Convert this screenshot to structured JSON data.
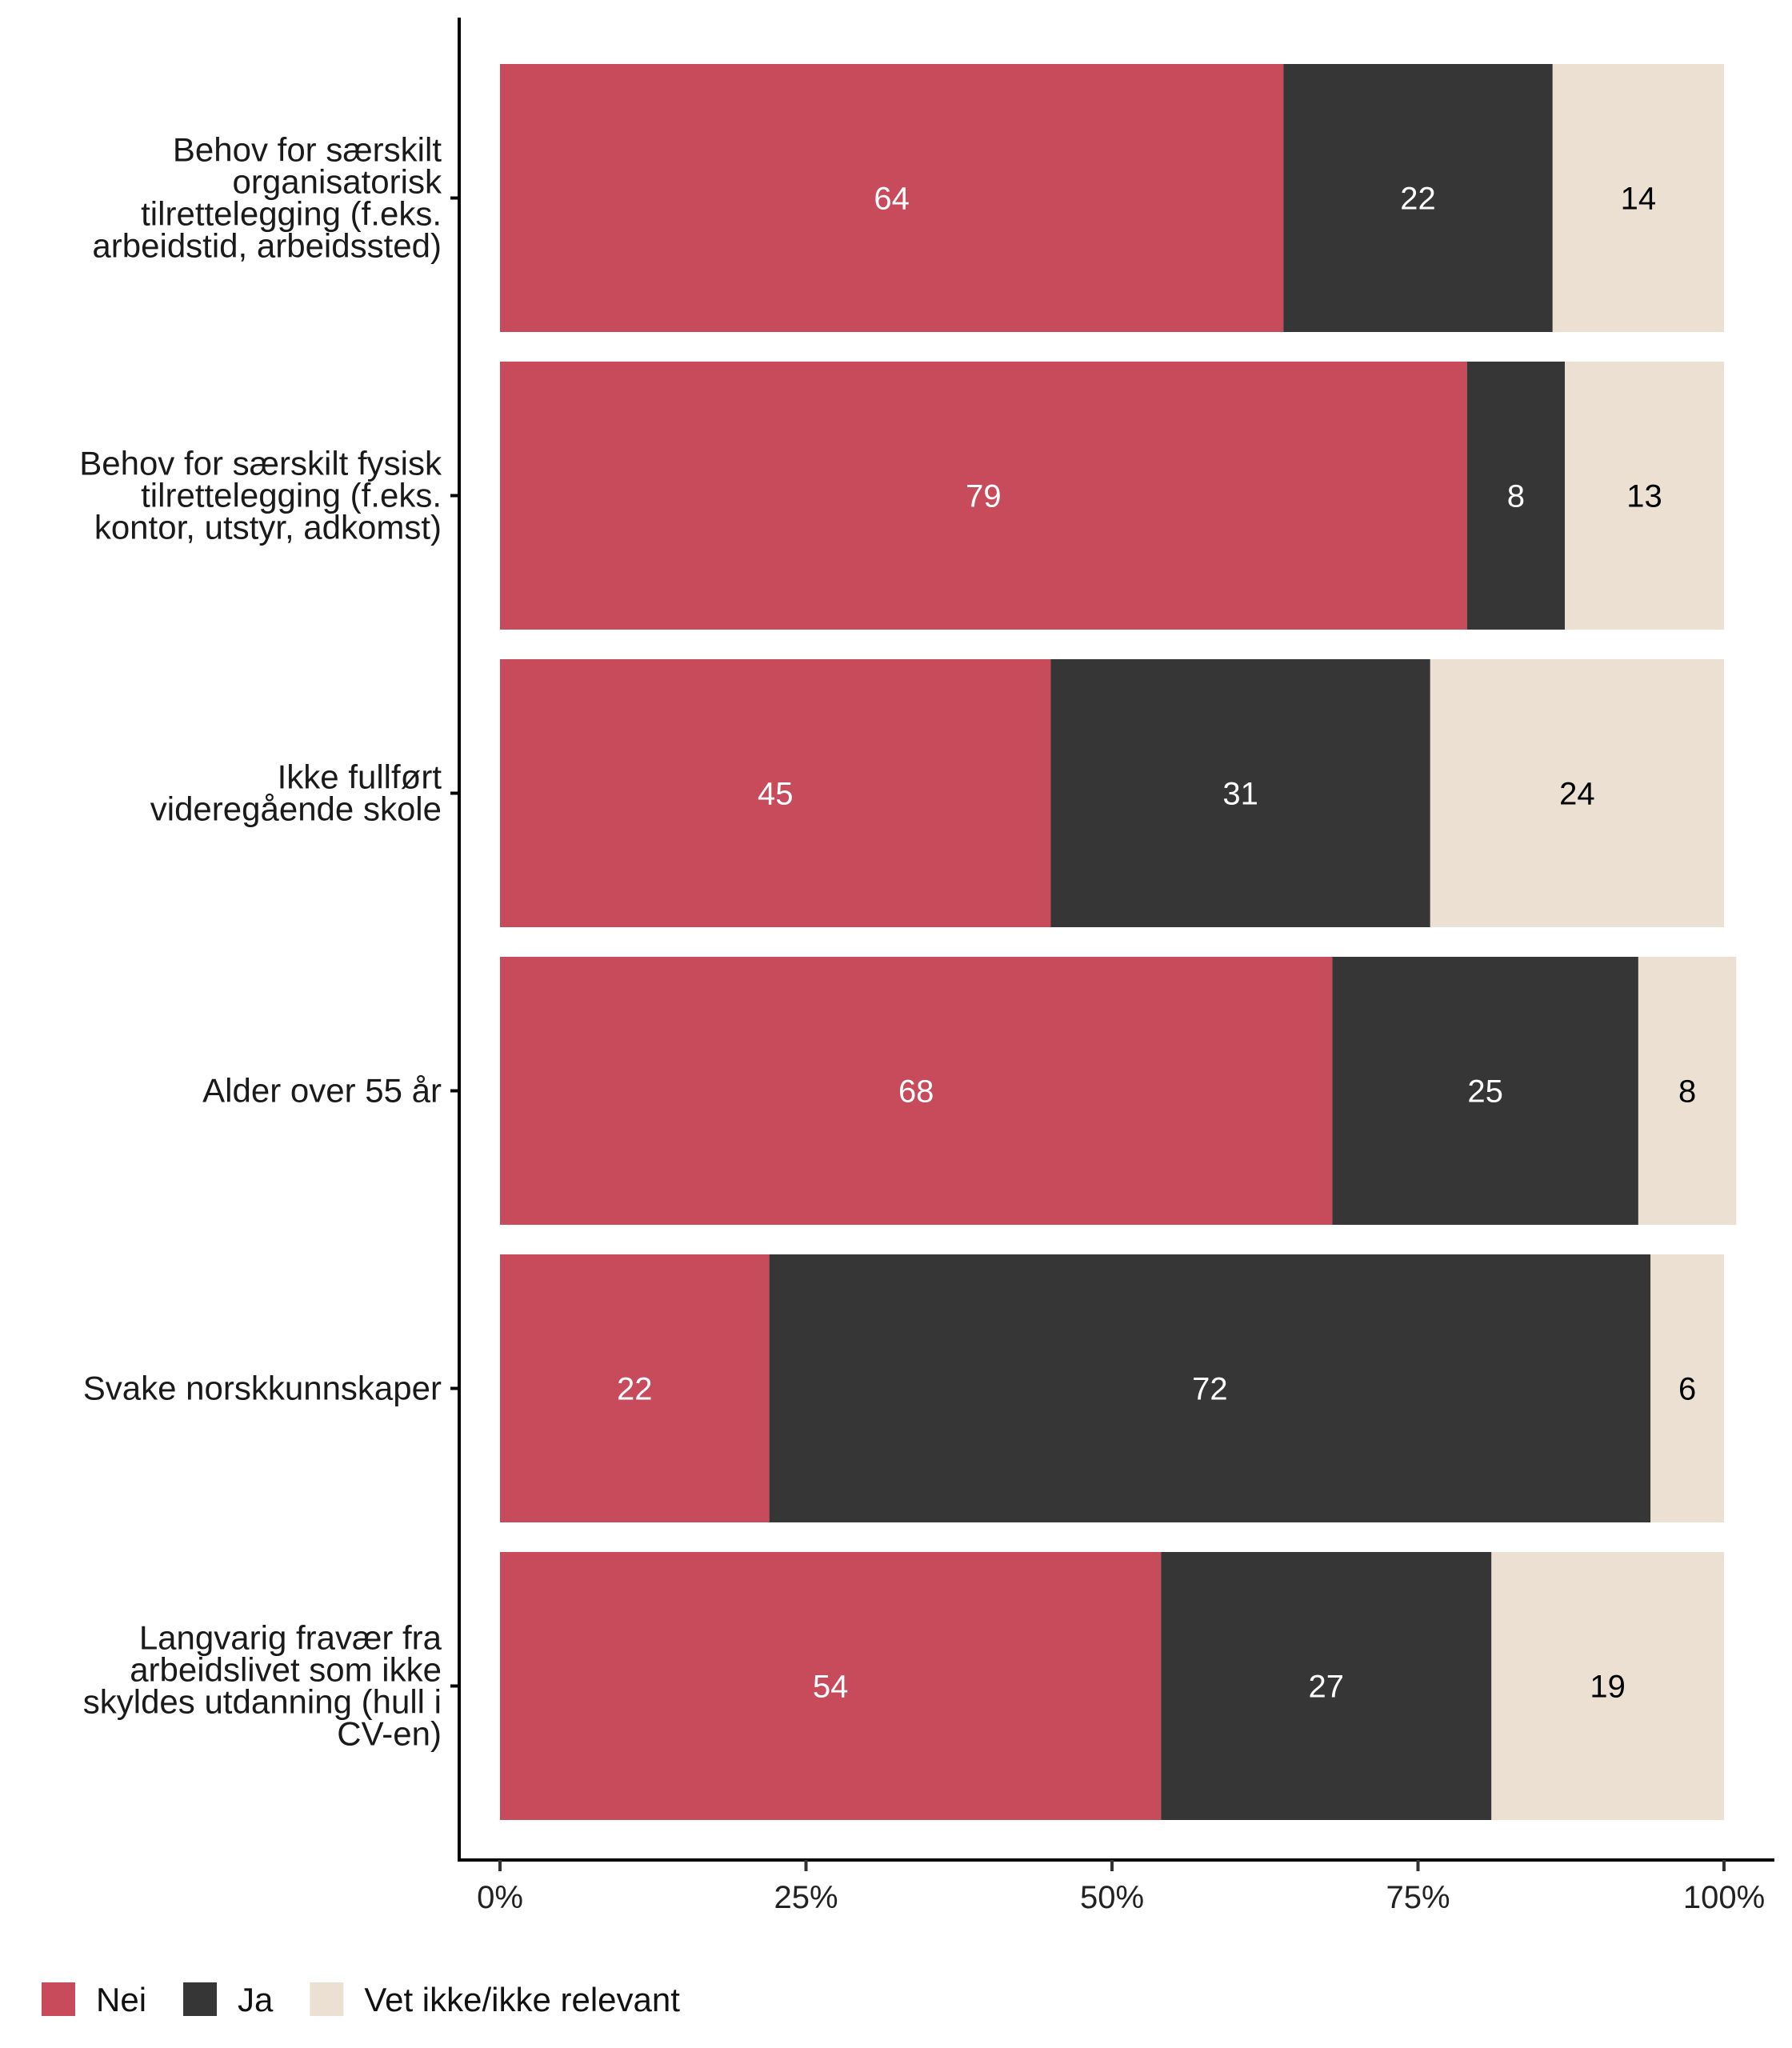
{
  "chart_data": {
    "type": "bar",
    "orientation": "horizontal",
    "stacked": true,
    "title": "",
    "xlabel": "",
    "ylabel": "",
    "xlim": [
      0,
      100
    ],
    "xticks": [
      "0%",
      "25%",
      "50%",
      "75%",
      "100%"
    ],
    "grid": false,
    "legend_position": "bottom-left",
    "categories": [
      [
        "Behov for særskilt",
        "organisatorisk",
        "tilrettelegging (f.eks.",
        "arbeidstid, arbeidssted)"
      ],
      [
        "Behov for særskilt fysisk",
        "tilrettelegging (f.eks.",
        "kontor, utstyr, adkomst)"
      ],
      [
        "Ikke fullført",
        "videregående skole"
      ],
      [
        "Alder over 55 år"
      ],
      [
        "Svake norskkunnskaper"
      ],
      [
        "Langvarig fravær fra",
        "arbeidslivet som ikke",
        "skyldes utdanning (hull i",
        "CV-en)"
      ]
    ],
    "series": [
      {
        "name": "Nei",
        "color": "#C84B5B",
        "label_color": "#ffffff",
        "values": [
          64,
          79,
          45,
          68,
          22,
          54
        ]
      },
      {
        "name": "Ja",
        "color": "#363636",
        "label_color": "#ffffff",
        "values": [
          22,
          8,
          31,
          25,
          72,
          27
        ]
      },
      {
        "name": "Vet ikke/ikke relevant",
        "color": "#EBE0D1",
        "label_color": "#000000",
        "values": [
          14,
          13,
          24,
          8,
          6,
          19
        ]
      }
    ]
  }
}
